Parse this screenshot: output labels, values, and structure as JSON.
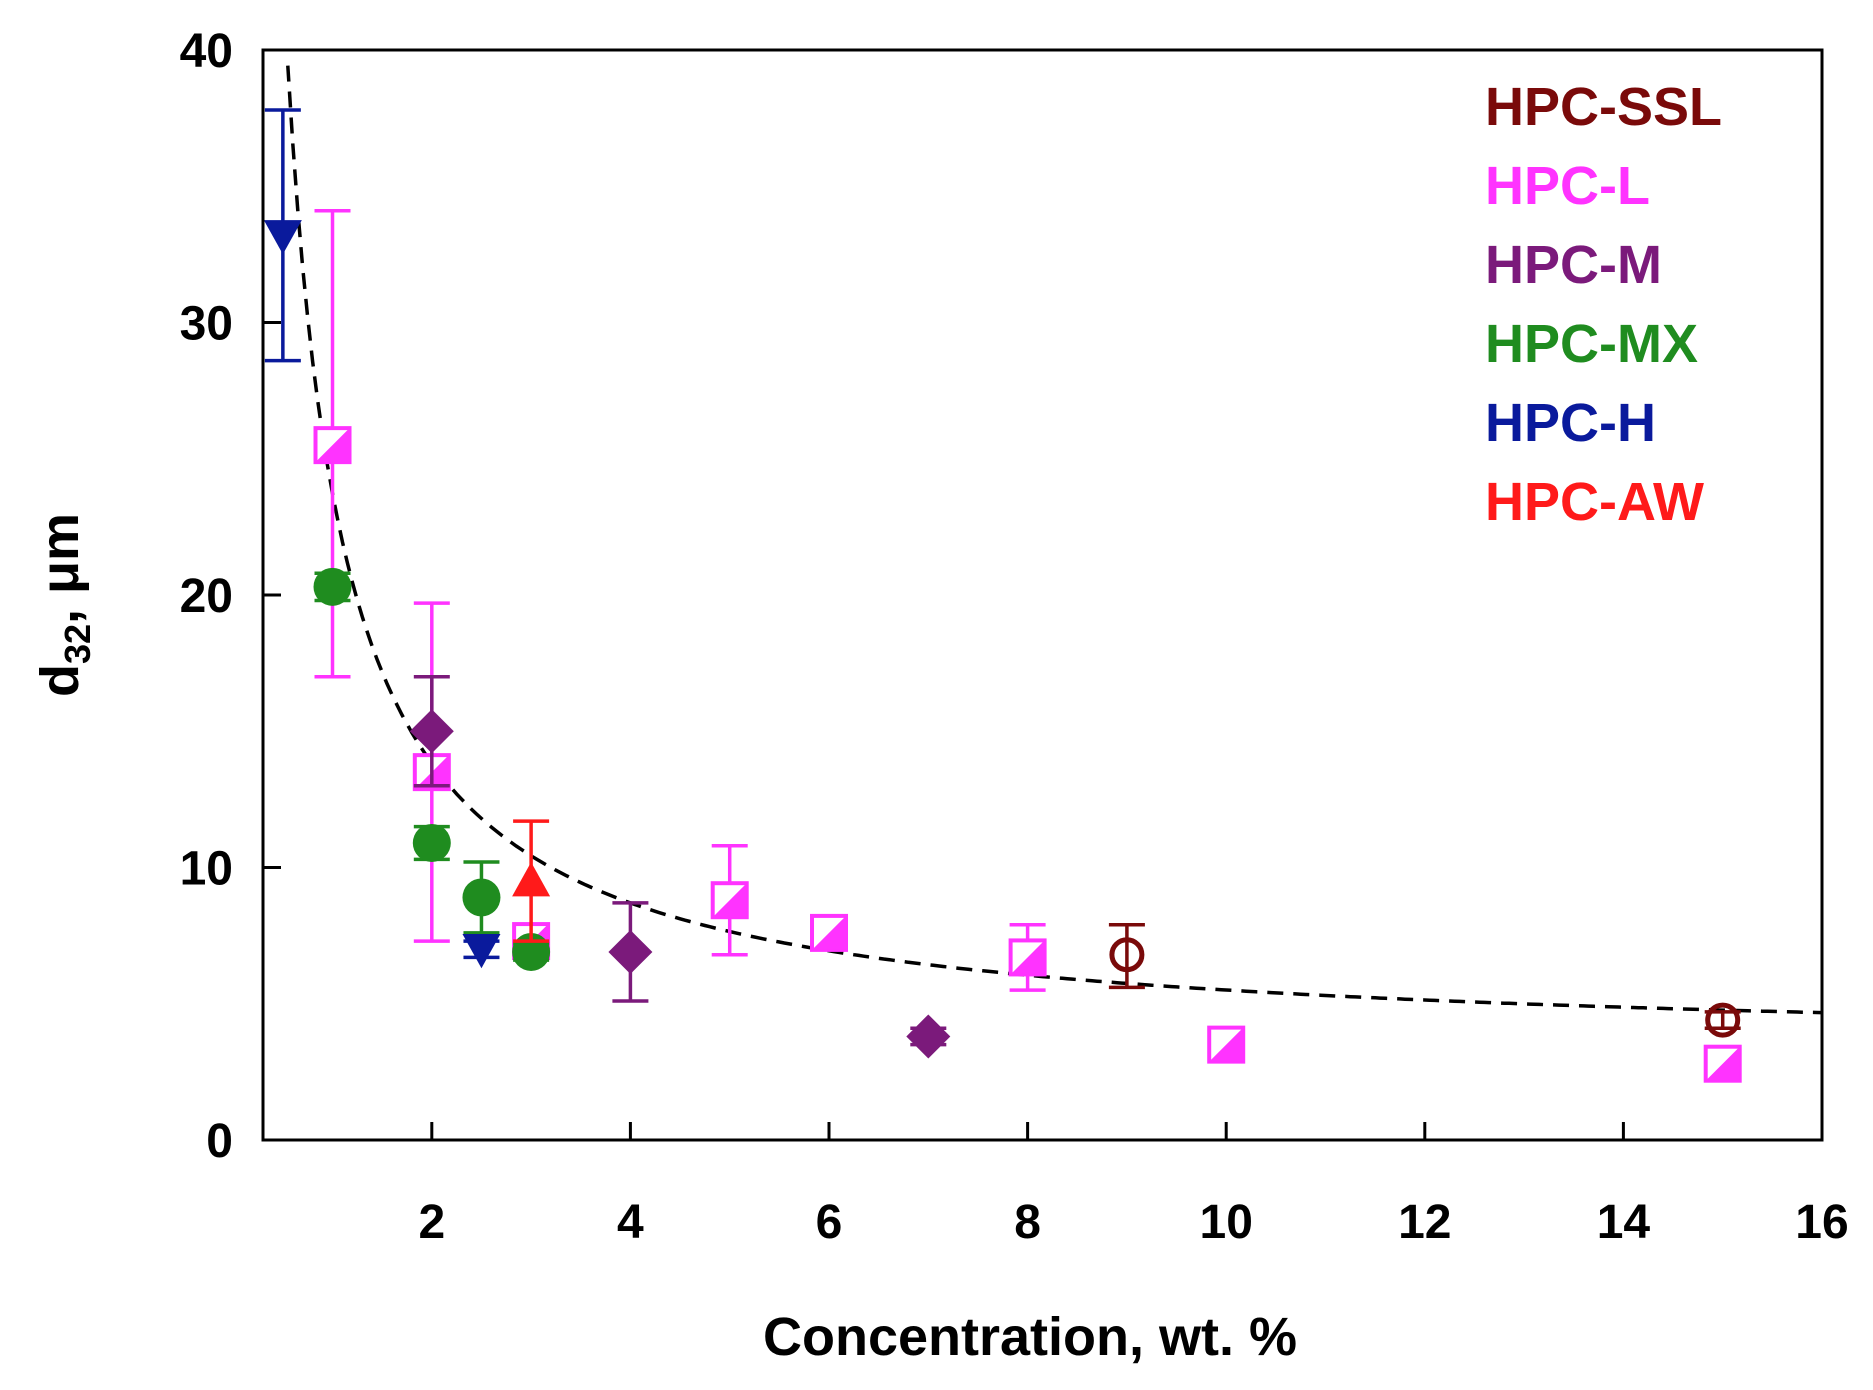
{
  "chart_data": {
    "type": "scatter",
    "title": "",
    "xlabel": "Concentration, wt. %",
    "ylabel_main": "d",
    "ylabel_sub": "32",
    "ylabel_rest": ", μm",
    "xlim": [
      0.3,
      16
    ],
    "ylim": [
      0,
      40
    ],
    "xticks": [
      2,
      4,
      6,
      8,
      10,
      12,
      14,
      16
    ],
    "yticks": [
      0,
      10,
      20,
      30,
      40
    ],
    "legend_position": "top-right",
    "series": [
      {
        "name": "HPC-SSL",
        "color": "#7a0a0a",
        "marker": "circle-open",
        "points": [
          {
            "x": 9,
            "y": 6.8,
            "err_low": 1.2,
            "err_high": 1.1
          },
          {
            "x": 15,
            "y": 4.4,
            "err_low": 0.3,
            "err_high": 0.3
          }
        ]
      },
      {
        "name": "HPC-L",
        "color": "#ff33ff",
        "marker": "square-half",
        "points": [
          {
            "x": 1,
            "y": 25.5,
            "err_low": 8.5,
            "err_high": 8.6
          },
          {
            "x": 2,
            "y": 13.5,
            "err_low": 6.2,
            "err_high": 6.2
          },
          {
            "x": 3,
            "y": 7.3,
            "err_low": 0.5,
            "err_high": 0.5
          },
          {
            "x": 5,
            "y": 8.8,
            "err_low": 2.0,
            "err_high": 2.0
          },
          {
            "x": 6,
            "y": 7.6,
            "err_low": 0.4,
            "err_high": 0.4
          },
          {
            "x": 8,
            "y": 6.7,
            "err_low": 1.2,
            "err_high": 1.2
          },
          {
            "x": 10,
            "y": 3.5,
            "err_low": 0.3,
            "err_high": 0.3
          },
          {
            "x": 15,
            "y": 2.8,
            "err_low": 0.2,
            "err_high": 0.2
          }
        ]
      },
      {
        "name": "HPC-M",
        "color": "#7b1a7b",
        "marker": "diamond",
        "points": [
          {
            "x": 2,
            "y": 15.0,
            "err_low": 2.0,
            "err_high": 2.0
          },
          {
            "x": 4,
            "y": 6.9,
            "err_low": 1.8,
            "err_high": 1.8
          },
          {
            "x": 7,
            "y": 3.8,
            "err_low": 0.3,
            "err_high": 0.3
          }
        ]
      },
      {
        "name": "HPC-MX",
        "color": "#1f8c1f",
        "marker": "circle",
        "points": [
          {
            "x": 1,
            "y": 20.3,
            "err_low": 0.5,
            "err_high": 0.5
          },
          {
            "x": 2,
            "y": 10.9,
            "err_low": 0.6,
            "err_high": 0.6
          },
          {
            "x": 2.5,
            "y": 8.9,
            "err_low": 1.3,
            "err_high": 1.3
          },
          {
            "x": 3,
            "y": 6.9,
            "err_low": 0.3,
            "err_high": 0.3
          }
        ]
      },
      {
        "name": "HPC-H",
        "color": "#0a1a9c",
        "marker": "triangle-down",
        "points": [
          {
            "x": 0.5,
            "y": 33.2,
            "err_low": 4.6,
            "err_high": 4.6
          },
          {
            "x": 2.5,
            "y": 7.0,
            "err_low": 0.3,
            "err_high": 0.3
          }
        ]
      },
      {
        "name": "HPC-AW",
        "color": "#ff1a1a",
        "marker": "triangle-up",
        "points": [
          {
            "x": 3,
            "y": 9.5,
            "err_low": 2.2,
            "err_high": 2.2
          }
        ]
      }
    ],
    "fit_curve": {
      "style": "dashed",
      "color": "#000000",
      "model": "y = a / x^b + c",
      "a": 20.53,
      "b": 0.95,
      "c": 3.2
    }
  }
}
